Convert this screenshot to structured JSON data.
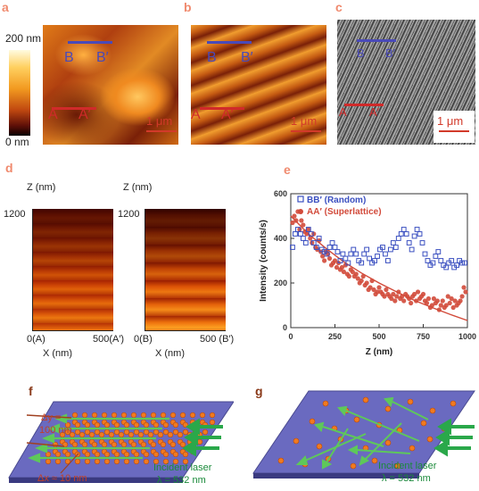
{
  "figure": {
    "panel_labels": [
      "a",
      "b",
      "c",
      "d",
      "e",
      "f",
      "g"
    ],
    "colorbar": {
      "max_label": "200 nm",
      "min_label": "0 nm"
    },
    "markers": {
      "b": "B",
      "b_prime": "B′",
      "a": "A",
      "a_prime": "A′"
    },
    "scale_bar_label": "1 μm",
    "panel_d": {
      "z_label": "Z (nm)",
      "z_tick": "1200",
      "left": {
        "x_start": "0(A)",
        "x_end": "500(A′)",
        "x_label": "X (nm)"
      },
      "right": {
        "x_start": "0(B)",
        "x_end": "500 (B′)",
        "x_label": "X (nm)"
      }
    },
    "panel_f": {
      "dy_label": "Δy =",
      "dy_value": "100 nm",
      "dx_label": "Δx ≈ 10 nm",
      "laser_label": "Incident laser",
      "laser_wavelength": "λ = 532 nm"
    },
    "panel_g": {
      "laser_label": "Incident laser",
      "laser_wavelength": "λ = 532 nm"
    }
  },
  "chart_data": {
    "type": "scatter",
    "xlabel": "Z (nm)",
    "ylabel": "Intensity (counts/s)",
    "xlim": [
      0,
      1000
    ],
    "ylim": [
      0,
      600
    ],
    "x_ticks": [
      0,
      250,
      500,
      750,
      1000
    ],
    "y_ticks": [
      0,
      200,
      400,
      600
    ],
    "legend_position": "top-right",
    "colors": {
      "random": "#3a4fc0",
      "superlattice": "#d24a3a",
      "fit": "#d24a3a"
    },
    "series": [
      {
        "name": "BB′ (Random)",
        "marker": "open-square",
        "x": [
          10,
          25,
          40,
          55,
          70,
          85,
          100,
          115,
          130,
          145,
          160,
          175,
          190,
          205,
          220,
          235,
          250,
          265,
          280,
          295,
          310,
          325,
          340,
          355,
          370,
          385,
          400,
          415,
          430,
          445,
          460,
          475,
          490,
          505,
          520,
          535,
          550,
          565,
          580,
          595,
          610,
          625,
          640,
          655,
          670,
          685,
          700,
          715,
          730,
          745,
          760,
          775,
          790,
          805,
          820,
          835,
          850,
          865,
          880,
          895,
          910,
          925,
          940,
          955,
          970,
          985
        ],
        "y": [
          360,
          420,
          440,
          420,
          400,
          380,
          440,
          420,
          380,
          360,
          400,
          350,
          340,
          330,
          360,
          380,
          360,
          340,
          300,
          330,
          310,
          290,
          330,
          350,
          330,
          300,
          290,
          330,
          350,
          310,
          290,
          300,
          320,
          350,
          360,
          330,
          300,
          350,
          380,
          360,
          400,
          420,
          440,
          420,
          380,
          350,
          410,
          440,
          420,
          380,
          330,
          300,
          280,
          290,
          320,
          340,
          300,
          280,
          270,
          290,
          300,
          270,
          280,
          300,
          290,
          290
        ]
      },
      {
        "name": "AA′ (Superlattice)",
        "marker": "filled-circle",
        "x": [
          10,
          20,
          30,
          40,
          50,
          60,
          70,
          80,
          90,
          100,
          110,
          120,
          130,
          140,
          150,
          160,
          170,
          180,
          190,
          200,
          210,
          220,
          230,
          240,
          250,
          260,
          270,
          280,
          290,
          300,
          310,
          320,
          330,
          340,
          350,
          360,
          370,
          380,
          390,
          400,
          410,
          420,
          430,
          440,
          450,
          460,
          470,
          480,
          490,
          500,
          510,
          520,
          530,
          540,
          550,
          560,
          570,
          580,
          590,
          600,
          610,
          620,
          630,
          640,
          650,
          660,
          670,
          680,
          690,
          700,
          710,
          720,
          730,
          740,
          750,
          760,
          770,
          780,
          790,
          800,
          810,
          820,
          830,
          840,
          850,
          860,
          870,
          880,
          890,
          900,
          910,
          920,
          930,
          940,
          950,
          960,
          970,
          980,
          990
        ],
        "y": [
          470,
          500,
          480,
          520,
          440,
          480,
          460,
          430,
          420,
          440,
          400,
          380,
          420,
          360,
          350,
          390,
          340,
          320,
          300,
          340,
          330,
          310,
          280,
          290,
          300,
          270,
          290,
          260,
          270,
          250,
          280,
          240,
          230,
          260,
          250,
          230,
          240,
          220,
          200,
          210,
          230,
          190,
          200,
          170,
          180,
          210,
          170,
          150,
          160,
          180,
          160,
          150,
          140,
          170,
          150,
          140,
          130,
          150,
          120,
          140,
          160,
          130,
          140,
          120,
          150,
          140,
          130,
          110,
          140,
          150,
          120,
          160,
          130,
          140,
          150,
          120,
          110,
          130,
          90,
          100,
          130,
          110,
          120,
          80,
          100,
          120,
          90,
          100,
          140,
          110,
          130,
          90,
          120,
          100,
          110,
          120,
          140,
          180,
          160
        ]
      },
      {
        "name": "",
        "marker": "line",
        "x": [
          0,
          100,
          200,
          300,
          400,
          500,
          600,
          700,
          800,
          900,
          1000
        ],
        "y": [
          500,
          420,
          355,
          295,
          245,
          200,
          160,
          122,
          90,
          60,
          32
        ]
      }
    ]
  }
}
